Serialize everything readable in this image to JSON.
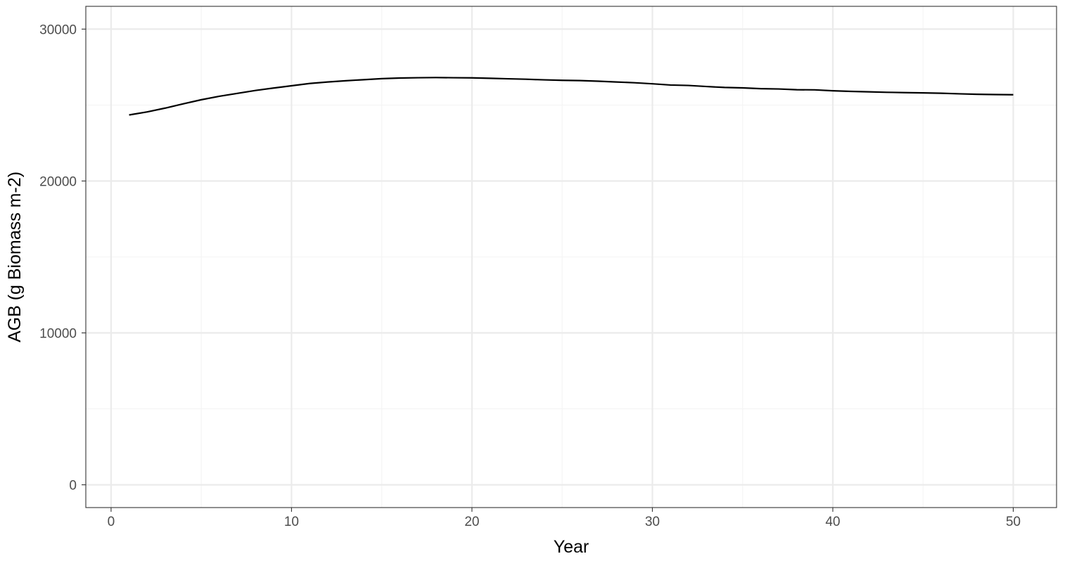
{
  "chart_data": {
    "type": "line",
    "title": "",
    "xlabel": "Year",
    "ylabel": "AGB (g Biomass m-2)",
    "xlim": [
      -1.4,
      52.4
    ],
    "ylim": [
      -1500,
      31500
    ],
    "x_ticks": [
      0,
      10,
      20,
      30,
      40,
      50
    ],
    "x_tick_labels": [
      "0",
      "10",
      "20",
      "30",
      "40",
      "50"
    ],
    "x_minor_ticks": [
      5,
      15,
      25,
      35,
      45
    ],
    "y_ticks": [
      0,
      10000,
      20000,
      30000
    ],
    "y_tick_labels": [
      "0",
      "10000",
      "20000",
      "30000"
    ],
    "y_minor_ticks": [
      5000,
      15000,
      25000
    ],
    "grid": true,
    "legend": "none",
    "series": [
      {
        "color": "#000000",
        "x": [
          1,
          2,
          3,
          4,
          5,
          6,
          7,
          8,
          9,
          10,
          11,
          12,
          13,
          14,
          15,
          16,
          17,
          18,
          19,
          20,
          21,
          22,
          23,
          24,
          25,
          26,
          27,
          28,
          29,
          30,
          31,
          32,
          33,
          34,
          35,
          36,
          37,
          38,
          39,
          40,
          41,
          42,
          43,
          44,
          45,
          46,
          47,
          48,
          49,
          50
        ],
        "y": [
          24350,
          24550,
          24800,
          25080,
          25350,
          25580,
          25770,
          25960,
          26120,
          26270,
          26420,
          26520,
          26600,
          26670,
          26740,
          26780,
          26800,
          26810,
          26800,
          26790,
          26760,
          26730,
          26700,
          26660,
          26630,
          26610,
          26570,
          26520,
          26470,
          26400,
          26320,
          26290,
          26220,
          26160,
          26130,
          26080,
          26060,
          26010,
          26000,
          25940,
          25900,
          25870,
          25840,
          25820,
          25800,
          25780,
          25740,
          25710,
          25690,
          25680
        ]
      }
    ]
  },
  "colors": {
    "panel_border": "#333333",
    "grid_major": "#ebebeb",
    "grid_minor": "#f4f4f4",
    "tick": "#333333"
  }
}
